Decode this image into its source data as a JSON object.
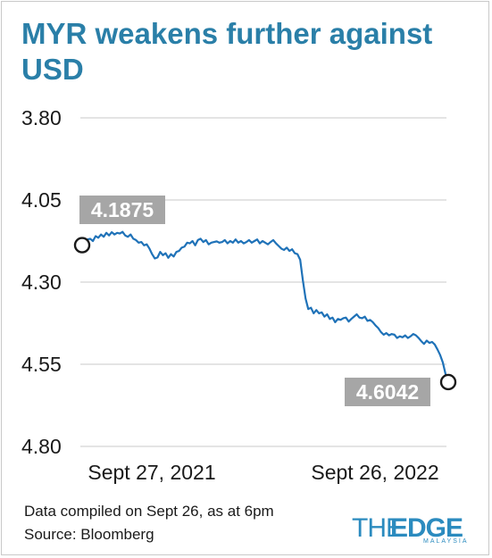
{
  "chart_data": {
    "type": "line",
    "title": "MYR weakens further against USD",
    "xlabel": "",
    "ylabel": "",
    "y_axis": {
      "min": 3.8,
      "max": 4.8,
      "inverted": true,
      "ticks": [
        "3.80",
        "4.05",
        "4.30",
        "4.55",
        "4.80"
      ]
    },
    "x_axis": {
      "start": "2021-09-27",
      "end": "2022-09-26",
      "tick_labels": [
        "Sept 27, 2021",
        "Sept 26, 2022"
      ]
    },
    "grid": true,
    "line_color": "#1f72b8",
    "series": [
      {
        "values": [
          4.1875,
          4.185,
          4.17,
          4.168,
          4.175,
          4.16,
          4.165,
          4.155,
          4.162,
          4.15,
          4.158,
          4.148,
          4.155,
          4.15,
          4.152,
          4.147,
          4.158,
          4.162,
          4.155,
          4.168,
          4.172,
          4.18,
          4.178,
          4.188,
          4.185,
          4.198,
          4.215,
          4.228,
          4.225,
          4.208,
          4.218,
          4.212,
          4.226,
          4.215,
          4.222,
          4.208,
          4.205,
          4.195,
          4.192,
          4.18,
          4.182,
          4.175,
          4.188,
          4.172,
          4.168,
          4.178,
          4.172,
          4.185,
          4.18,
          4.178,
          4.176,
          4.18,
          4.178,
          4.172,
          4.182,
          4.175,
          4.18,
          4.17,
          4.18,
          4.175,
          4.182,
          4.178,
          4.172,
          4.18,
          4.175,
          4.17,
          4.182,
          4.175,
          4.18,
          4.185,
          4.178,
          4.172,
          4.182,
          4.19,
          4.198,
          4.202,
          4.195,
          4.205,
          4.2,
          4.212,
          4.215,
          4.232,
          4.295,
          4.35,
          4.382,
          4.378,
          4.395,
          4.385,
          4.395,
          4.392,
          4.405,
          4.398,
          4.412,
          4.408,
          4.422,
          4.412,
          4.415,
          4.41,
          4.408,
          4.42,
          4.412,
          4.405,
          4.398,
          4.408,
          4.41,
          4.405,
          4.418,
          4.415,
          4.422,
          4.432,
          4.44,
          4.452,
          4.46,
          4.455,
          4.462,
          4.458,
          4.46,
          4.47,
          4.465,
          4.468,
          4.462,
          4.47,
          4.465,
          4.458,
          4.462,
          4.47,
          4.48,
          4.488,
          4.478,
          4.485,
          4.482,
          4.49,
          4.505,
          4.522,
          4.545,
          4.58,
          4.6042
        ]
      }
    ],
    "annotations": [
      {
        "label": "4.1875",
        "point": "start",
        "value": 4.1875
      },
      {
        "label": "4.6042",
        "point": "end",
        "value": 4.6042
      }
    ],
    "callout_color": "#a6a6a6"
  },
  "footer": {
    "note": "Data compiled on Sept 26, as at 6pm",
    "source": "Source: Bloomberg"
  },
  "logo": {
    "the": "THE",
    "edge": "EDGE",
    "sub": "MALAYSIA"
  }
}
